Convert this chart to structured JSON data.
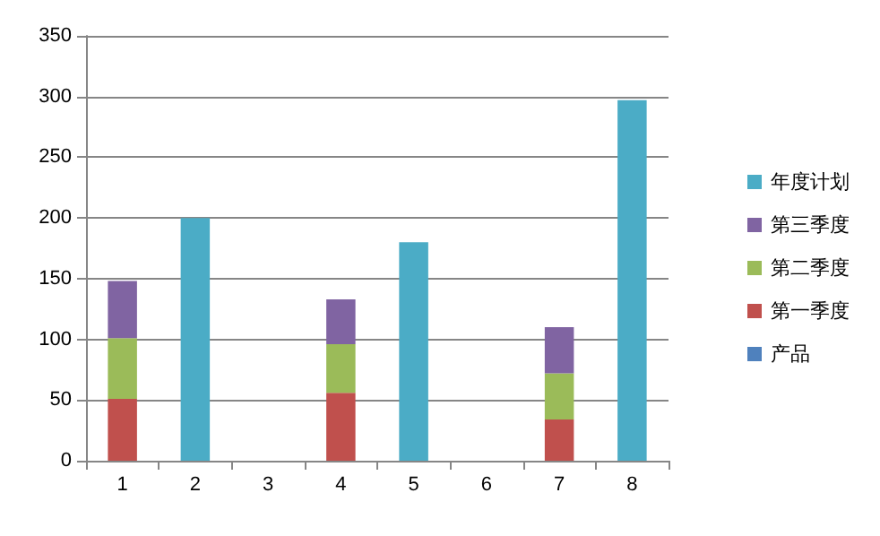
{
  "chart_data": {
    "type": "bar",
    "stacked": true,
    "categories": [
      "1",
      "2",
      "3",
      "4",
      "5",
      "6",
      "7",
      "8"
    ],
    "series": [
      {
        "name": "产品",
        "color": "#4f81bd",
        "values": [
          null,
          null,
          null,
          null,
          null,
          null,
          null,
          null
        ]
      },
      {
        "name": "第一季度",
        "color": "#c0504d",
        "values": [
          51,
          null,
          null,
          56,
          null,
          null,
          34,
          null
        ]
      },
      {
        "name": "第二季度",
        "color": "#9bbb59",
        "values": [
          50,
          null,
          null,
          40,
          null,
          null,
          38,
          null
        ]
      },
      {
        "name": "第三季度",
        "color": "#8064a2",
        "values": [
          47,
          null,
          null,
          37,
          null,
          null,
          38,
          null
        ]
      },
      {
        "name": "年度计划",
        "color": "#4bacc6",
        "values": [
          null,
          200,
          null,
          null,
          180,
          null,
          null,
          297
        ]
      }
    ],
    "ylim": [
      0,
      350
    ],
    "yticks": [
      0,
      50,
      100,
      150,
      200,
      250,
      300,
      350
    ],
    "grid": "y",
    "legend": "right"
  }
}
